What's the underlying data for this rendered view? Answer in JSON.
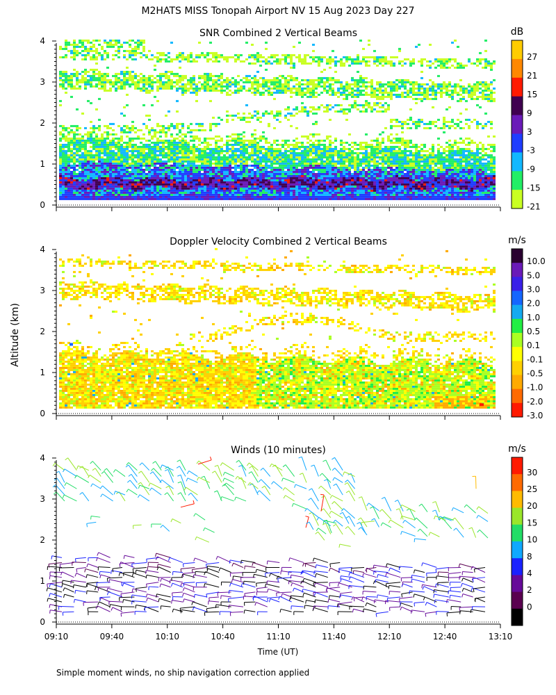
{
  "figure": {
    "title": "M2HATS MISS Tonopah Airport NV  15 Aug 2023 Day 227",
    "ylabel": "Altitude (km)",
    "xlabel": "Time (UT)",
    "footnote": "Simple moment winds, no ship navigation correction applied"
  },
  "chart_data": [
    {
      "type": "heatmap",
      "title": "SNR Combined 2 Vertical Beams",
      "ylabel": "Altitude (km)",
      "xlabel": "Time (UT)",
      "ylim": [
        0,
        4
      ],
      "yticks": [
        "0",
        "1",
        "2",
        "3",
        "4"
      ],
      "x_range": [
        "09:10",
        "13:10"
      ],
      "colorbar": {
        "unit": "dB",
        "labels": [
          "27",
          "21",
          "15",
          "9",
          "3",
          "-3",
          "-9",
          "-15",
          "-21"
        ],
        "colors": [
          "#ffcc00",
          "#ff8800",
          "#ff1a00",
          "#400050",
          "#6a1ab8",
          "#1f3dff",
          "#12b8ff",
          "#22ee66",
          "#c9ff22"
        ]
      }
    },
    {
      "type": "heatmap",
      "title": "Doppler Velocity Combined 2 Vertical Beams",
      "ylabel": "Altitude (km)",
      "xlabel": "Time (UT)",
      "ylim": [
        0,
        4
      ],
      "yticks": [
        "0",
        "1",
        "2",
        "3",
        "4"
      ],
      "x_range": [
        "09:10",
        "13:10"
      ],
      "colorbar": {
        "unit": "m/s",
        "labels": [
          "10.0",
          "5.0",
          "3.0",
          "2.0",
          "1.0",
          "0.5",
          "0.1",
          "-0.1",
          "-0.5",
          "-1.0",
          "-2.0",
          "-3.0"
        ],
        "colors": [
          "#2a0030",
          "#6a1ab8",
          "#3a20e8",
          "#1566ff",
          "#14aaf0",
          "#22ee44",
          "#aaff22",
          "#ffff00",
          "#ffd000",
          "#ffaa00",
          "#ff6a00",
          "#ff1a00"
        ]
      }
    },
    {
      "type": "scatter",
      "title": "Winds (10 minutes)",
      "ylabel": "Altitude (km)",
      "xlabel": "Time (UT)",
      "ylim": [
        0,
        4
      ],
      "yticks": [
        "0",
        "1",
        "2",
        "3",
        "4"
      ],
      "xticks": [
        "09:10",
        "09:40",
        "10:10",
        "10:40",
        "11:10",
        "11:40",
        "12:10",
        "12:40",
        "13:10"
      ],
      "colorbar": {
        "unit": "m/s",
        "labels": [
          "30",
          "25",
          "20",
          "15",
          "10",
          "8",
          "4",
          "2",
          "0"
        ],
        "colors": [
          "#ff1a00",
          "#ff6a00",
          "#ffbb00",
          "#9ae62a",
          "#22dd66",
          "#10a8ff",
          "#1a22ff",
          "#660a99",
          "#5a0050",
          "#000000"
        ]
      }
    }
  ],
  "icons": [
    "wind-barb-icon"
  ]
}
